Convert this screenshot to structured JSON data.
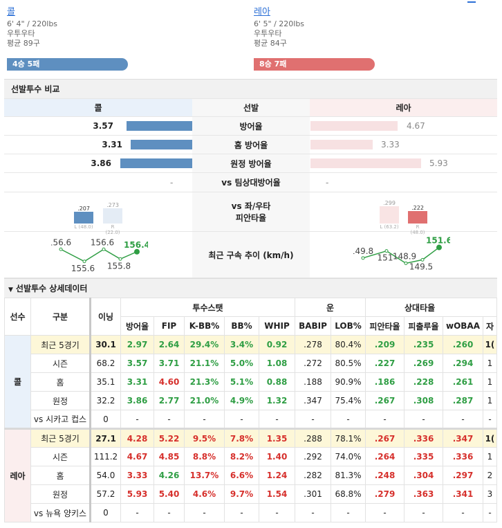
{
  "left_pitcher": {
    "name": "콜",
    "size": "6' 4\" / 220lbs",
    "throw": "우투우타",
    "avg_pitch": "평균 89구",
    "record": "4승 5패",
    "color": "#5e8fc0"
  },
  "right_pitcher": {
    "name": "레아",
    "size": "6' 5\" / 220lbs",
    "throw": "우투우타",
    "avg_pitch": "평균 84구",
    "record": "8승 7패",
    "color": "#e07070"
  },
  "compare": {
    "title": "선발투수 비교",
    "head_left": "콜",
    "head_mid": "선발",
    "head_right": "레아",
    "rows": [
      {
        "label": "방어율",
        "left": "3.57",
        "right": "4.67",
        "left_val": 3.57,
        "right_val": 4.67
      },
      {
        "label": "홈 방어율",
        "left": "3.31",
        "right": "3.33",
        "left_val": 3.31,
        "right_val": 3.33
      },
      {
        "label": "원정 방어율",
        "left": "3.86",
        "right": "5.93",
        "left_val": 3.86,
        "right_val": 5.93
      }
    ],
    "vs_label": "vs 팀상대방어율",
    "vs_left": "-",
    "vs_right": "-",
    "split_label_1": "vs 좌/우타",
    "split_label_2": "피안타율",
    "left_split": {
      "L": {
        "value": ".207",
        "label": "L (48.0)",
        "num": 0.207
      },
      "R": {
        "value": ".273",
        "label": "R (22.0)",
        "num": 0.273
      }
    },
    "right_split": {
      "L": {
        "value": ".299",
        "label": "L (63.2)",
        "num": 0.299
      },
      "R": {
        "value": ".222",
        "label": "R (48.0)",
        "num": 0.222
      }
    },
    "velo_label": "최근 구속 추이 (km/h)",
    "left_velo": [
      "156.6",
      "155.6",
      "156.6",
      "155.8",
      "156.4"
    ],
    "right_velo": [
      "149.8",
      "151",
      "148.9",
      "149.5",
      "151.6"
    ]
  },
  "detail": {
    "title": "선발투수 상세데이터",
    "headers": {
      "player": "선수",
      "category": "구분",
      "inning": "이닝",
      "pitch_stats": "투수스탯",
      "luck": "운",
      "opp": "상대타율",
      "cols": [
        "방어율",
        "FIP",
        "K-BB%",
        "BB%",
        "WHIP",
        "BABIP",
        "LOB%",
        "피안타율",
        "피출루율",
        "wOBAA",
        "자"
      ]
    },
    "groups": [
      {
        "player": "콜",
        "rows": [
          {
            "cat": "최근 5경기",
            "inn": "30.1",
            "vals": [
              "2.97",
              "2.64",
              "29.4%",
              "3.4%",
              "0.92",
              ".278",
              "80.4%",
              ".209",
              ".235",
              ".260",
              "1("
            ],
            "cls": [
              "g",
              "g",
              "g",
              "g",
              "g",
              "",
              "",
              "g",
              "g",
              "g",
              "b"
            ]
          },
          {
            "cat": "시즌",
            "inn": "68.2",
            "vals": [
              "3.57",
              "3.71",
              "21.1%",
              "5.0%",
              "1.08",
              ".272",
              "80.5%",
              ".227",
              ".269",
              ".294",
              "1"
            ],
            "cls": [
              "g",
              "g",
              "g",
              "g",
              "g",
              "",
              "",
              "g",
              "g",
              "g",
              ""
            ]
          },
          {
            "cat": "홈",
            "inn": "35.1",
            "vals": [
              "3.31",
              "4.60",
              "21.3%",
              "5.1%",
              "0.88",
              ".188",
              "90.9%",
              ".186",
              ".228",
              ".261",
              "1"
            ],
            "cls": [
              "g",
              "r",
              "g",
              "g",
              "g",
              "",
              "",
              "g",
              "g",
              "g",
              ""
            ]
          },
          {
            "cat": "원정",
            "inn": "32.2",
            "vals": [
              "3.86",
              "2.77",
              "21.0%",
              "4.9%",
              "1.32",
              ".347",
              "75.4%",
              ".267",
              ".308",
              ".287",
              "1"
            ],
            "cls": [
              "g",
              "g",
              "g",
              "g",
              "g",
              "",
              "",
              "g",
              "g",
              "g",
              ""
            ]
          },
          {
            "cat": "vs 시카고 컵스",
            "inn": "0",
            "vals": [
              "-",
              "-",
              "-",
              "-",
              "-",
              "-",
              "-",
              "-",
              "-",
              "-",
              "-"
            ],
            "cls": [
              "",
              "",
              "",
              "",
              "",
              "",
              "",
              "",
              "",
              "",
              ""
            ]
          }
        ]
      },
      {
        "player": "레아",
        "rows": [
          {
            "cat": "최근 5경기",
            "inn": "27.1",
            "vals": [
              "4.28",
              "5.22",
              "9.5%",
              "7.8%",
              "1.35",
              ".288",
              "78.1%",
              ".267",
              ".336",
              ".347",
              "1("
            ],
            "cls": [
              "r",
              "r",
              "r",
              "r",
              "r",
              "",
              "",
              "r",
              "r",
              "r",
              "b"
            ]
          },
          {
            "cat": "시즌",
            "inn": "111.2",
            "vals": [
              "4.67",
              "4.85",
              "8.8%",
              "8.2%",
              "1.40",
              ".292",
              "74.0%",
              ".264",
              ".335",
              ".336",
              "1"
            ],
            "cls": [
              "r",
              "r",
              "r",
              "r",
              "r",
              "",
              "",
              "r",
              "r",
              "r",
              ""
            ]
          },
          {
            "cat": "홈",
            "inn": "54.0",
            "vals": [
              "3.33",
              "4.26",
              "13.7%",
              "6.6%",
              "1.24",
              ".282",
              "81.3%",
              ".248",
              ".304",
              ".297",
              "2"
            ],
            "cls": [
              "r",
              "g",
              "r",
              "r",
              "r",
              "",
              "",
              "r",
              "r",
              "r",
              ""
            ]
          },
          {
            "cat": "원정",
            "inn": "57.2",
            "vals": [
              "5.93",
              "5.40",
              "4.6%",
              "9.7%",
              "1.54",
              ".301",
              "68.8%",
              ".279",
              ".363",
              ".341",
              "3"
            ],
            "cls": [
              "r",
              "r",
              "r",
              "r",
              "r",
              "",
              "",
              "r",
              "r",
              "r",
              ""
            ]
          },
          {
            "cat": "vs 뉴욕 양키스",
            "inn": "0",
            "vals": [
              "-",
              "-",
              "-",
              "-",
              "-",
              "-",
              "-",
              "-",
              "-",
              "-",
              "-"
            ],
            "cls": [
              "",
              "",
              "",
              "",
              "",
              "",
              "",
              "",
              "",
              "",
              ""
            ]
          }
        ]
      }
    ]
  }
}
